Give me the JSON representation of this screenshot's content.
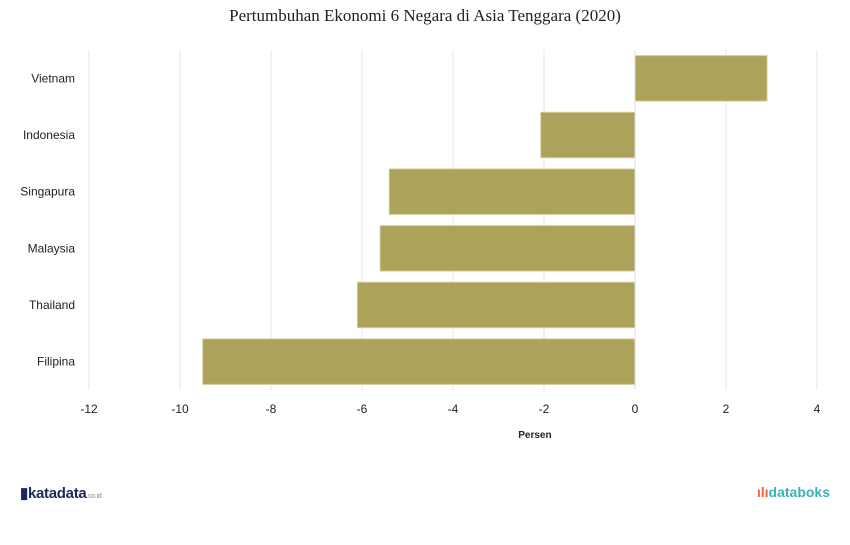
{
  "chart_data": {
    "type": "bar",
    "orientation": "horizontal",
    "title": "Pertumbuhan Ekonomi 6 Negara di Asia Tenggara (2020)",
    "xlabel": "Persen",
    "ylabel": "",
    "categories": [
      "Vietnam",
      "Indonesia",
      "Singapura",
      "Malaysia",
      "Thailand",
      "Filipina"
    ],
    "values": [
      2.9,
      -2.07,
      -5.4,
      -5.6,
      -6.1,
      -9.5
    ],
    "xlim": [
      -12,
      4
    ],
    "xticks": [
      "-12",
      "-10",
      "-8",
      "-6",
      "-4",
      "-2",
      "0",
      "2",
      "4"
    ],
    "grid": true,
    "bar_color": "#ada25a"
  },
  "footer": {
    "left_logo": "katadata",
    "left_logo_suffix": ".co.id",
    "right_logo": "databoks"
  }
}
